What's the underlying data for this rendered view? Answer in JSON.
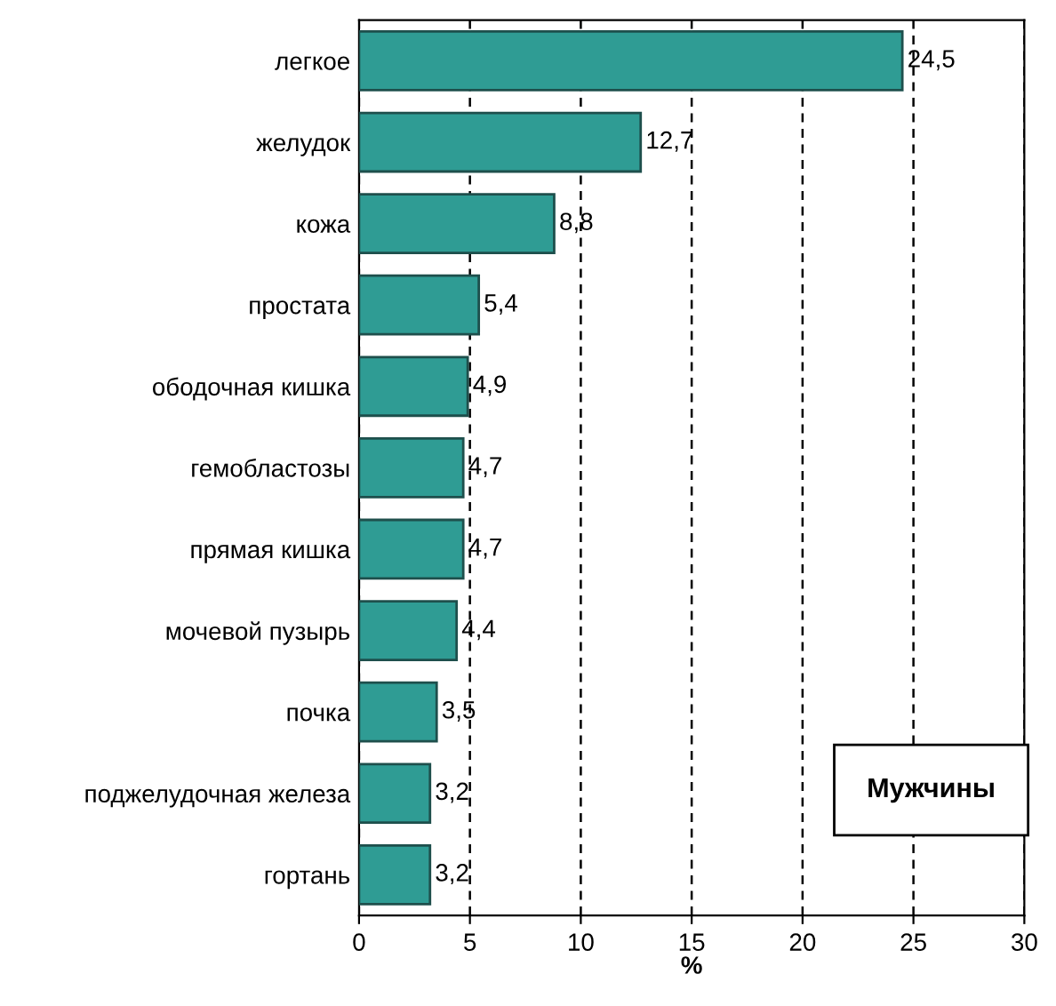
{
  "chart_data": {
    "type": "bar",
    "orientation": "horizontal",
    "xlabel": "%",
    "categories": [
      "легкое",
      "желудок",
      "кожа",
      "простата",
      "ободочная кишка",
      "гемобластозы",
      "прямая кишка",
      "мочевой пузырь",
      "почка",
      "поджелудочная железа",
      "гортань"
    ],
    "values": [
      24.5,
      12.7,
      8.8,
      5.4,
      4.9,
      4.7,
      4.7,
      4.4,
      3.5,
      3.2,
      3.2
    ],
    "value_labels": [
      "24,5",
      "12,7",
      "8,8",
      "5,4",
      "4,9",
      "4,7",
      "4,7",
      "4,4",
      "3,5",
      "3,2",
      "3,2"
    ],
    "color": "#2f9c94",
    "xlim": [
      0,
      30
    ],
    "xticks": [
      0,
      5,
      10,
      15,
      20,
      25,
      30
    ],
    "grid": "x",
    "annotations": [
      "Мужчины"
    ]
  }
}
